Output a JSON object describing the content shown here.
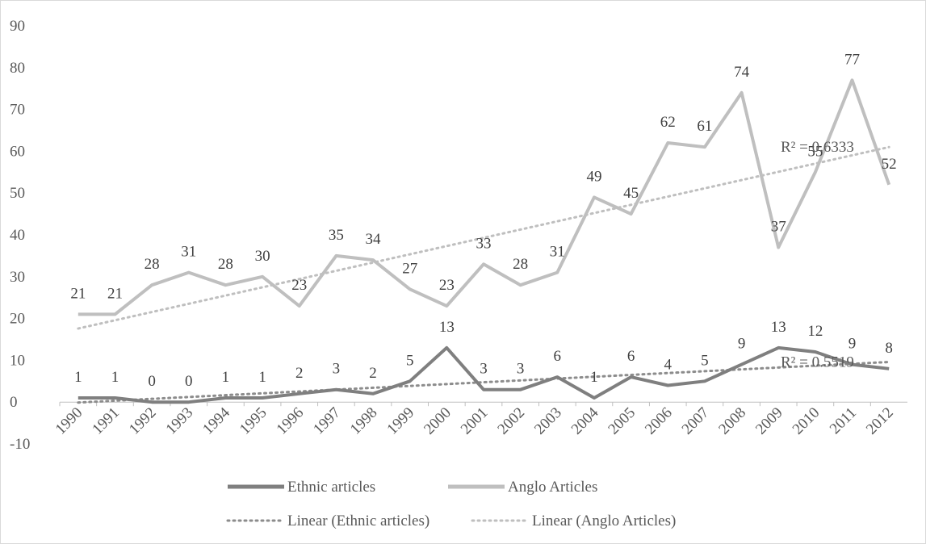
{
  "chart_data": {
    "type": "line",
    "categories": [
      "1990",
      "1991",
      "1992",
      "1993",
      "1994",
      "1995",
      "1996",
      "1997",
      "1998",
      "1999",
      "2000",
      "2001",
      "2002",
      "2003",
      "2004",
      "2005",
      "2006",
      "2007",
      "2008",
      "2009",
      "2010",
      "2011",
      "2012"
    ],
    "ylim": [
      -10,
      90
    ],
    "yticks": [
      -10,
      0,
      10,
      20,
      30,
      40,
      50,
      60,
      70,
      80,
      90
    ],
    "grid": false,
    "legend_position": "bottom",
    "series": [
      {
        "name": "Ethnic articles",
        "color": "#7f7f7f",
        "values": [
          1,
          1,
          0,
          0,
          1,
          1,
          2,
          3,
          2,
          5,
          13,
          3,
          3,
          6,
          1,
          6,
          4,
          5,
          9,
          13,
          12,
          9,
          8
        ]
      },
      {
        "name": "Anglo Articles",
        "color": "#bfbfbf",
        "values": [
          21,
          21,
          28,
          31,
          28,
          30,
          23,
          35,
          34,
          27,
          23,
          33,
          28,
          31,
          49,
          45,
          62,
          61,
          74,
          37,
          55,
          77,
          52
        ]
      }
    ],
    "trendlines": [
      {
        "name": "Linear (Ethnic articles)",
        "color": "#8c8c8c",
        "style": "dotted",
        "r2_label": "R² = 0.5519",
        "start": -0.1,
        "end": 9.6
      },
      {
        "name": "Linear (Anglo Articles)",
        "color": "#bfbfbf",
        "style": "dotted",
        "r2_label": "R² = 0.6333",
        "start": 17.6,
        "end": 61.0
      }
    ]
  }
}
